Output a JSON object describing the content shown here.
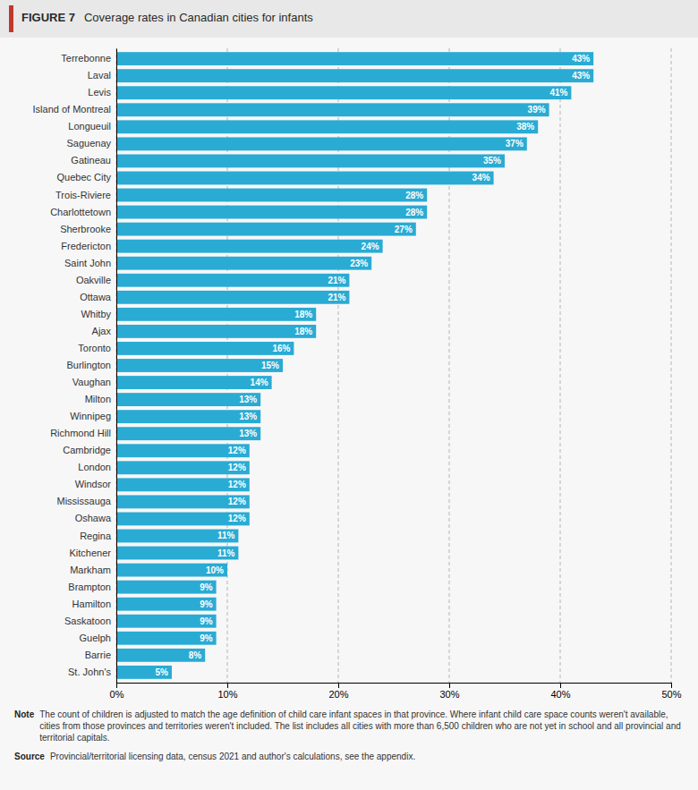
{
  "chart_data": {
    "type": "bar",
    "orientation": "horizontal",
    "title": "Coverage rates in Canadian cities for infants",
    "annotations": [
      "FIGURE 7",
      "Note",
      "The count of children is adjusted to match the age definition of child care infant spaces in that province. Where infant child care space counts weren't available, cities from those provinces and territories weren't included. The list includes all cities with more than 6,500 children who are not yet in school and all provincial and territorial capitals.",
      "Source",
      "Provincial/territorial licensing data, census 2021 and author's calculations, see the appendix."
    ],
    "categories": [
      "Terrebonne",
      "Laval",
      "Levis",
      "Island of Montreal",
      "Longueuil",
      "Saguenay",
      "Gatineau",
      "Quebec City",
      "Trois-Riviere",
      "Charlottetown",
      "Sherbrooke",
      "Fredericton",
      "Saint John",
      "Oakville",
      "Ottawa",
      "Whitby",
      "Ajax",
      "Toronto",
      "Burlington",
      "Vaughan",
      "Milton",
      "Winnipeg",
      "Richmond Hill",
      "Cambridge",
      "London",
      "Windsor",
      "Mississauga",
      "Oshawa",
      "Regina",
      "Kitchener",
      "Markham",
      "Brampton",
      "Hamilton",
      "Saskatoon",
      "Guelph",
      "Barrie",
      "St. John's"
    ],
    "values": [
      43,
      43,
      41,
      39,
      38,
      37,
      35,
      34,
      28,
      28,
      27,
      24,
      23,
      21,
      21,
      18,
      18,
      16,
      15,
      14,
      13,
      13,
      13,
      12,
      12,
      12,
      12,
      12,
      11,
      11,
      10,
      9,
      9,
      9,
      9,
      8,
      5
    ],
    "value_labels": [
      "43%",
      "43%",
      "41%",
      "39%",
      "38%",
      "37%",
      "35%",
      "34%",
      "28%",
      "28%",
      "27%",
      "24%",
      "23%",
      "21%",
      "21%",
      "18%",
      "18%",
      "16%",
      "15%",
      "14%",
      "13%",
      "13%",
      "13%",
      "12%",
      "12%",
      "12%",
      "12%",
      "12%",
      "11%",
      "11%",
      "10%",
      "9%",
      "9%",
      "9%",
      "9%",
      "8%",
      "5%"
    ],
    "data_labels": true,
    "color": "#29ABD4",
    "xlim": [
      0,
      50
    ],
    "xticks": [
      {
        "value": 0,
        "label": "0%"
      },
      {
        "value": 10,
        "label": "10%"
      },
      {
        "value": 20,
        "label": "20%"
      },
      {
        "value": 30,
        "label": "30%"
      },
      {
        "value": 40,
        "label": "40%"
      },
      {
        "value": 50,
        "label": "50%"
      }
    ],
    "grid": true
  }
}
